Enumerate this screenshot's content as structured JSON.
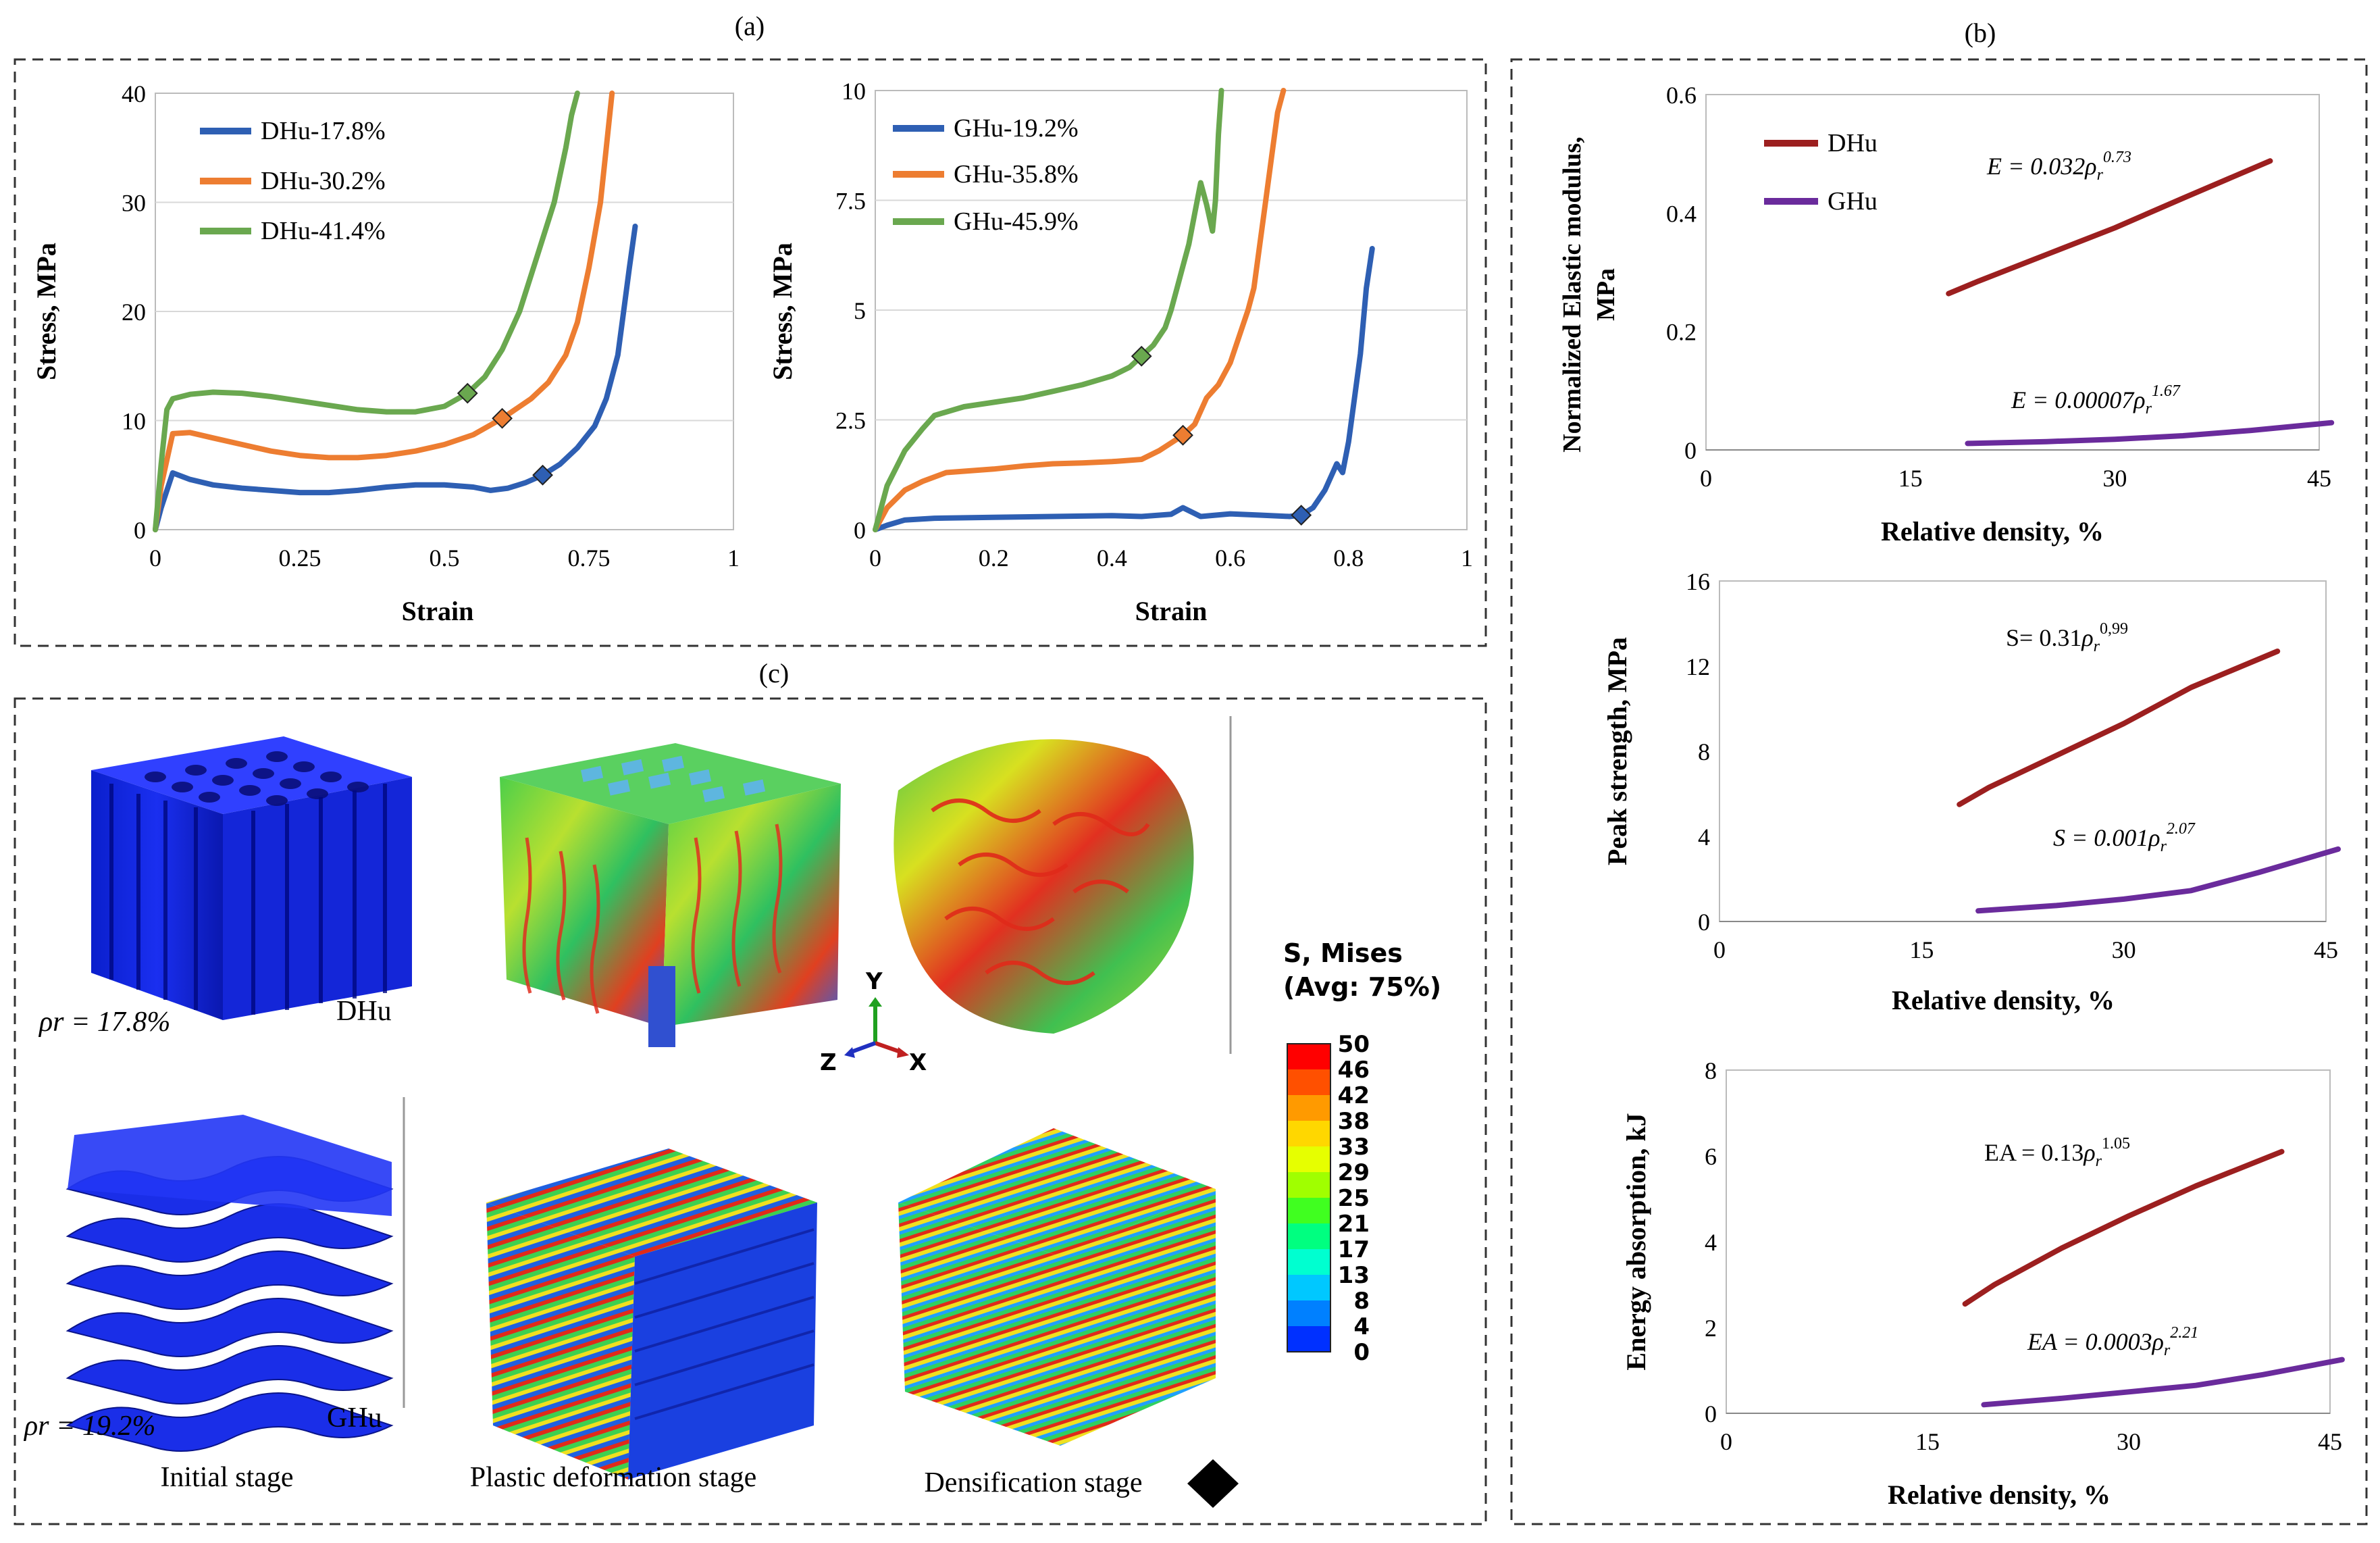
{
  "panels": {
    "a": {
      "label": "(a)"
    },
    "b": {
      "label": "(b)"
    },
    "c": {
      "label": "(c)"
    }
  },
  "colors": {
    "blue": "#2E5FB3",
    "orange": "#ED7D31",
    "green": "#6AA84F",
    "dhu": "#9C1F1F",
    "ghu": "#6A2B9C"
  },
  "chart_data": [
    {
      "id": "dhu_stress_strain",
      "type": "line",
      "title": "",
      "xlabel": "Strain",
      "ylabel": "Stress, MPa",
      "xlim": [
        0,
        1
      ],
      "ylim": [
        0,
        40
      ],
      "xticks": [
        0,
        0.25,
        0.5,
        0.75,
        1
      ],
      "xtick_labels": [
        "0",
        "0.25",
        "0.5",
        "0.75",
        "1"
      ],
      "yticks": [
        0,
        10,
        20,
        30,
        40
      ],
      "ytick_labels": [
        "0",
        "10",
        "20",
        "30",
        "40"
      ],
      "legend": "top-left",
      "series": [
        {
          "name": "DHu-17.8%",
          "color": "#2E5FB3",
          "marker": [
            0.67,
            5.0
          ],
          "points": [
            [
              0,
              0
            ],
            [
              0.01,
              2
            ],
            [
              0.03,
              5.2
            ],
            [
              0.06,
              4.6
            ],
            [
              0.1,
              4.1
            ],
            [
              0.15,
              3.8
            ],
            [
              0.2,
              3.6
            ],
            [
              0.25,
              3.4
            ],
            [
              0.3,
              3.4
            ],
            [
              0.35,
              3.6
            ],
            [
              0.4,
              3.9
            ],
            [
              0.45,
              4.1
            ],
            [
              0.5,
              4.1
            ],
            [
              0.55,
              3.9
            ],
            [
              0.58,
              3.6
            ],
            [
              0.61,
              3.8
            ],
            [
              0.64,
              4.3
            ],
            [
              0.67,
              5.0
            ],
            [
              0.7,
              6.0
            ],
            [
              0.73,
              7.5
            ],
            [
              0.76,
              9.5
            ],
            [
              0.78,
              12
            ],
            [
              0.8,
              16
            ],
            [
              0.81,
              20
            ],
            [
              0.82,
              24
            ],
            [
              0.83,
              27.8
            ]
          ]
        },
        {
          "name": "DHu-30.2%",
          "color": "#ED7D31",
          "marker": [
            0.6,
            10.2
          ],
          "points": [
            [
              0,
              0
            ],
            [
              0.01,
              4
            ],
            [
              0.03,
              8.8
            ],
            [
              0.06,
              8.9
            ],
            [
              0.1,
              8.4
            ],
            [
              0.15,
              7.8
            ],
            [
              0.2,
              7.2
            ],
            [
              0.25,
              6.8
            ],
            [
              0.3,
              6.6
            ],
            [
              0.35,
              6.6
            ],
            [
              0.4,
              6.8
            ],
            [
              0.45,
              7.2
            ],
            [
              0.5,
              7.8
            ],
            [
              0.55,
              8.7
            ],
            [
              0.6,
              10.2
            ],
            [
              0.65,
              12
            ],
            [
              0.68,
              13.5
            ],
            [
              0.71,
              16
            ],
            [
              0.73,
              19
            ],
            [
              0.75,
              24
            ],
            [
              0.77,
              30
            ],
            [
              0.78,
              35
            ],
            [
              0.79,
              40
            ]
          ]
        },
        {
          "name": "DHu-41.4%",
          "color": "#6AA84F",
          "marker": [
            0.54,
            12.5
          ],
          "points": [
            [
              0,
              0
            ],
            [
              0.01,
              6
            ],
            [
              0.02,
              11
            ],
            [
              0.03,
              12
            ],
            [
              0.06,
              12.4
            ],
            [
              0.1,
              12.6
            ],
            [
              0.15,
              12.5
            ],
            [
              0.2,
              12.2
            ],
            [
              0.25,
              11.8
            ],
            [
              0.3,
              11.4
            ],
            [
              0.35,
              11.0
            ],
            [
              0.4,
              10.8
            ],
            [
              0.45,
              10.8
            ],
            [
              0.5,
              11.3
            ],
            [
              0.54,
              12.5
            ],
            [
              0.57,
              14
            ],
            [
              0.6,
              16.5
            ],
            [
              0.63,
              20
            ],
            [
              0.66,
              25
            ],
            [
              0.69,
              30
            ],
            [
              0.71,
              35
            ],
            [
              0.72,
              38
            ],
            [
              0.73,
              40
            ]
          ]
        }
      ]
    },
    {
      "id": "ghu_stress_strain",
      "type": "line",
      "title": "",
      "xlabel": "Strain",
      "ylabel": "Stress, MPa",
      "xlim": [
        0,
        1
      ],
      "ylim": [
        0,
        10
      ],
      "xticks": [
        0,
        0.2,
        0.4,
        0.6,
        0.8,
        1
      ],
      "xtick_labels": [
        "0",
        "0.2",
        "0.4",
        "0.6",
        "0.8",
        "1"
      ],
      "yticks": [
        0,
        2.5,
        5,
        7.5,
        10
      ],
      "ytick_labels": [
        "0",
        "2.5",
        "5",
        "7.5",
        "10"
      ],
      "legend": "top-left",
      "series": [
        {
          "name": "GHu-19.2%",
          "color": "#2E5FB3",
          "marker": [
            0.72,
            0.33
          ],
          "points": [
            [
              0,
              0
            ],
            [
              0.02,
              0.1
            ],
            [
              0.05,
              0.22
            ],
            [
              0.1,
              0.26
            ],
            [
              0.2,
              0.28
            ],
            [
              0.3,
              0.3
            ],
            [
              0.4,
              0.32
            ],
            [
              0.45,
              0.3
            ],
            [
              0.5,
              0.35
            ],
            [
              0.52,
              0.5
            ],
            [
              0.55,
              0.3
            ],
            [
              0.6,
              0.36
            ],
            [
              0.65,
              0.33
            ],
            [
              0.7,
              0.3
            ],
            [
              0.72,
              0.33
            ],
            [
              0.74,
              0.5
            ],
            [
              0.76,
              0.9
            ],
            [
              0.78,
              1.5
            ],
            [
              0.79,
              1.3
            ],
            [
              0.8,
              2.0
            ],
            [
              0.81,
              3.0
            ],
            [
              0.82,
              4.0
            ],
            [
              0.83,
              5.5
            ],
            [
              0.84,
              6.4
            ]
          ]
        },
        {
          "name": "GHu-35.8%",
          "color": "#ED7D31",
          "marker": [
            0.52,
            2.15
          ],
          "points": [
            [
              0,
              0
            ],
            [
              0.02,
              0.5
            ],
            [
              0.05,
              0.9
            ],
            [
              0.08,
              1.1
            ],
            [
              0.12,
              1.3
            ],
            [
              0.2,
              1.38
            ],
            [
              0.25,
              1.45
            ],
            [
              0.3,
              1.5
            ],
            [
              0.35,
              1.52
            ],
            [
              0.4,
              1.55
            ],
            [
              0.45,
              1.6
            ],
            [
              0.48,
              1.8
            ],
            [
              0.52,
              2.15
            ],
            [
              0.54,
              2.4
            ],
            [
              0.56,
              3.0
            ],
            [
              0.58,
              3.3
            ],
            [
              0.6,
              3.8
            ],
            [
              0.62,
              4.6
            ],
            [
              0.63,
              5.0
            ],
            [
              0.64,
              5.5
            ],
            [
              0.65,
              6.5
            ],
            [
              0.66,
              7.5
            ],
            [
              0.67,
              8.5
            ],
            [
              0.68,
              9.5
            ],
            [
              0.69,
              10
            ]
          ]
        },
        {
          "name": "GHu-45.9%",
          "color": "#6AA84F",
          "marker": [
            0.45,
            3.95
          ],
          "points": [
            [
              0,
              0
            ],
            [
              0.02,
              1.0
            ],
            [
              0.05,
              1.8
            ],
            [
              0.08,
              2.3
            ],
            [
              0.1,
              2.6
            ],
            [
              0.15,
              2.8
            ],
            [
              0.2,
              2.9
            ],
            [
              0.25,
              3.0
            ],
            [
              0.3,
              3.15
            ],
            [
              0.35,
              3.3
            ],
            [
              0.4,
              3.5
            ],
            [
              0.43,
              3.7
            ],
            [
              0.45,
              3.95
            ],
            [
              0.47,
              4.2
            ],
            [
              0.49,
              4.6
            ],
            [
              0.5,
              5.0
            ],
            [
              0.51,
              5.5
            ],
            [
              0.52,
              6.0
            ],
            [
              0.53,
              6.5
            ],
            [
              0.54,
              7.2
            ],
            [
              0.55,
              7.9
            ],
            [
              0.56,
              7.4
            ],
            [
              0.57,
              6.8
            ],
            [
              0.575,
              7.5
            ],
            [
              0.58,
              9.0
            ],
            [
              0.585,
              10
            ]
          ]
        }
      ]
    },
    {
      "id": "elastic_modulus",
      "type": "line",
      "xlabel": "Relative density, %",
      "ylabel": "Normalized Elastic modulus, MPa",
      "ylabel_line1": "Normalized Elastic modulus,",
      "ylabel_line2": "MPa",
      "xlim": [
        0,
        45
      ],
      "ylim": [
        0,
        0.6
      ],
      "xticks": [
        0,
        15,
        30,
        45
      ],
      "xtick_labels": [
        "0",
        "15",
        "30",
        "45"
      ],
      "yticks": [
        0,
        0.2,
        0.4,
        0.6
      ],
      "ytick_labels": [
        "0",
        "0.2",
        "0.4",
        "0.6"
      ],
      "legend": "top-left",
      "series": [
        {
          "name": "DHu",
          "color": "#9C1F1F",
          "eq": "E = 0.032ρr0.73",
          "eq_lhs": "E = 0.032",
          "eq_exp": "0.73",
          "points": [
            [
              17.8,
              0.264
            ],
            [
              20,
              0.285
            ],
            [
              25,
              0.33
            ],
            [
              30,
              0.375
            ],
            [
              35,
              0.425
            ],
            [
              41.4,
              0.488
            ]
          ]
        },
        {
          "name": "GHu",
          "color": "#6A2B9C",
          "eq": "E = 0.00007ρr1.67",
          "eq_lhs": "E = 0.00007",
          "eq_exp": "1.67",
          "points": [
            [
              19.2,
              0.011
            ],
            [
              25,
              0.014
            ],
            [
              30,
              0.018
            ],
            [
              35,
              0.024
            ],
            [
              40,
              0.033
            ],
            [
              45.9,
              0.046
            ]
          ]
        }
      ]
    },
    {
      "id": "peak_strength",
      "type": "line",
      "xlabel": "Relative density, %",
      "ylabel": "Peak strength, MPa",
      "xlim": [
        0,
        45
      ],
      "ylim": [
        0,
        16
      ],
      "xticks": [
        0,
        15,
        30,
        45
      ],
      "xtick_labels": [
        "0",
        "15",
        "30",
        "45"
      ],
      "yticks": [
        0,
        4,
        8,
        12,
        16
      ],
      "ytick_labels": [
        "0",
        "4",
        "8",
        "12",
        "16"
      ],
      "series": [
        {
          "name": "DHu",
          "color": "#9C1F1F",
          "eq": "S= 0.31ρr0.99",
          "eq_lhs": "S= 0.31",
          "eq_exp": "0,99",
          "points": [
            [
              17.8,
              5.5
            ],
            [
              20,
              6.3
            ],
            [
              25,
              7.8
            ],
            [
              30,
              9.3
            ],
            [
              35,
              11.0
            ],
            [
              41.4,
              12.7
            ]
          ]
        },
        {
          "name": "GHu",
          "color": "#6A2B9C",
          "eq": "S = 0.001ρr2.07",
          "eq_lhs": "S = 0.001",
          "eq_exp": "2.07",
          "points": [
            [
              19.2,
              0.5
            ],
            [
              25,
              0.75
            ],
            [
              30,
              1.05
            ],
            [
              35,
              1.45
            ],
            [
              40,
              2.3
            ],
            [
              45.9,
              3.4
            ]
          ]
        }
      ]
    },
    {
      "id": "energy_absorption",
      "type": "line",
      "xlabel": "Relative density, %",
      "ylabel": "Energy absorption, kJ",
      "xlim": [
        0,
        45
      ],
      "ylim": [
        0,
        8
      ],
      "xticks": [
        0,
        15,
        30,
        45
      ],
      "xtick_labels": [
        "0",
        "15",
        "30",
        "45"
      ],
      "yticks": [
        0,
        2,
        4,
        6,
        8
      ],
      "ytick_labels": [
        "0",
        "2",
        "4",
        "6",
        "8"
      ],
      "series": [
        {
          "name": "DHu",
          "color": "#9C1F1F",
          "eq": "EA = 0.13ρr1.05",
          "eq_lhs": "EA = 0.13",
          "eq_exp": "1.05",
          "points": [
            [
              17.8,
              2.55
            ],
            [
              20,
              3.0
            ],
            [
              25,
              3.85
            ],
            [
              30,
              4.6
            ],
            [
              35,
              5.3
            ],
            [
              41.4,
              6.1
            ]
          ]
        },
        {
          "name": "GHu",
          "color": "#6A2B9C",
          "eq": "EA = 0.0003ρr2.21",
          "eq_lhs": "EA = 0.0003",
          "eq_exp": "2.21",
          "points": [
            [
              19.2,
              0.2
            ],
            [
              25,
              0.35
            ],
            [
              30,
              0.5
            ],
            [
              35,
              0.65
            ],
            [
              40,
              0.9
            ],
            [
              45.9,
              1.25
            ]
          ]
        }
      ]
    }
  ],
  "fea": {
    "legend_title_1": "S, Mises",
    "legend_title_2": "(Avg: 75%)",
    "legend_values": [
      "50",
      "46",
      "42",
      "38",
      "33",
      "29",
      "25",
      "21",
      "17",
      "13",
      "8",
      "4",
      "0"
    ],
    "legend_colors": [
      "#ff0000",
      "#ff5000",
      "#ff9a00",
      "#ffd700",
      "#e6ff00",
      "#a0ff00",
      "#40ff20",
      "#00ff80",
      "#00ffd0",
      "#00c8ff",
      "#0080ff",
      "#0030ff",
      "#0000c8"
    ],
    "axis_y": "Y",
    "axis_z": "Z",
    "axis_x": "X",
    "dhu_density": "ρr = 17.8%",
    "ghu_density": "ρr = 19.2%",
    "dhu_name": "DHu",
    "ghu_name": "GHu",
    "stage_initial": "Initial stage",
    "stage_plastic": "Plastic deformation stage",
    "stage_densification": "Densification stage"
  }
}
